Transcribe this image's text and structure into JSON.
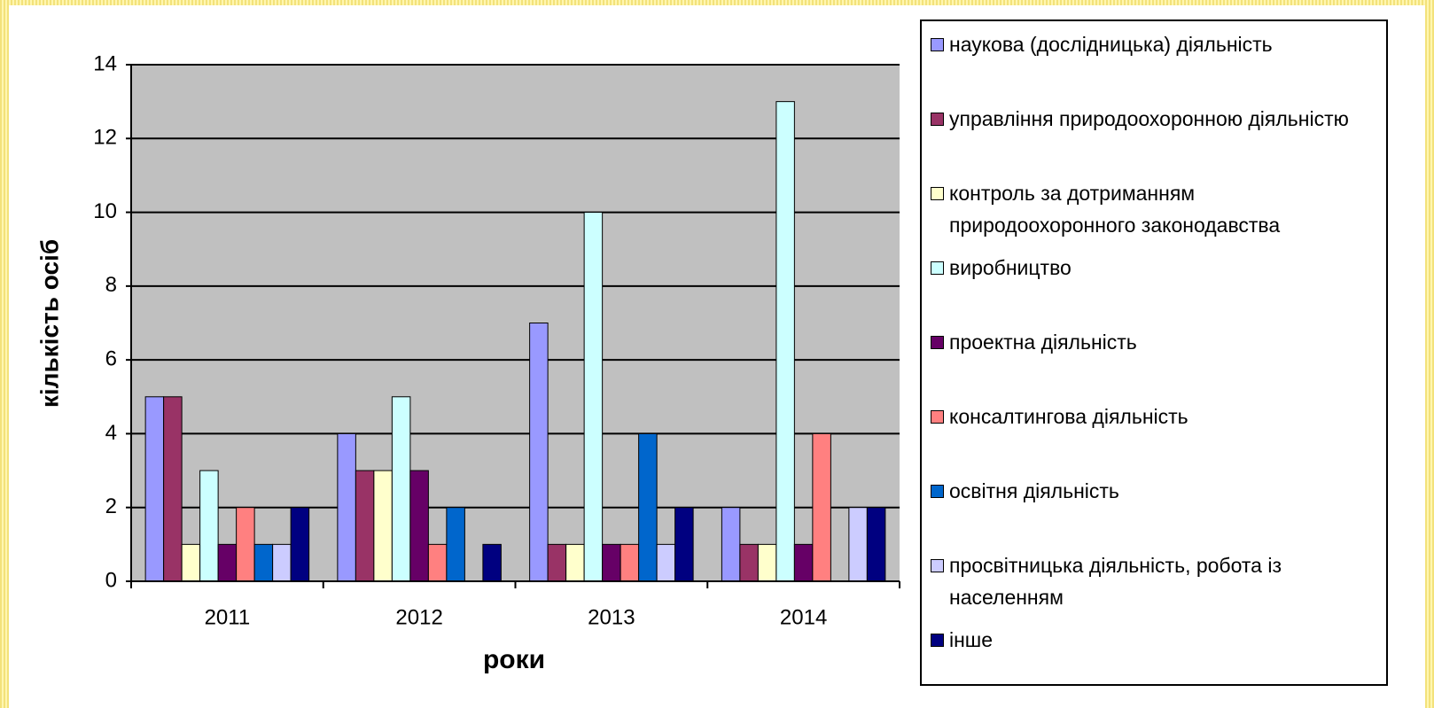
{
  "chart_data": {
    "type": "bar",
    "x_label": "роки",
    "y_label": "кількість осіб",
    "categories": [
      "2011",
      "2012",
      "2013",
      "2014"
    ],
    "series": [
      {
        "name": "наукова (дослідницька) діяльність",
        "color": "#9999ff",
        "values": [
          5,
          4,
          7,
          2
        ]
      },
      {
        "name": "управління природоохоронною діяльністю",
        "color": "#993366",
        "values": [
          5,
          3,
          1,
          1
        ]
      },
      {
        "name": "контроль за дотриманням природоохоронного законодавства",
        "color": "#ffffcc",
        "values": [
          1,
          3,
          1,
          1
        ]
      },
      {
        "name": "виробництво",
        "color": "#ccffff",
        "values": [
          3,
          5,
          10,
          13
        ]
      },
      {
        "name": "проектна діяльність",
        "color": "#660066",
        "values": [
          1,
          3,
          1,
          1
        ]
      },
      {
        "name": "консалтингова діяльність",
        "color": "#ff8080",
        "values": [
          2,
          1,
          1,
          4
        ]
      },
      {
        "name": "освітня діяльність",
        "color": "#0066cc",
        "values": [
          1,
          2,
          4,
          0
        ]
      },
      {
        "name": "просвітницька діяльність, робота із населенням",
        "color": "#ccccff",
        "values": [
          1,
          0,
          1,
          2
        ]
      },
      {
        "name": "інше",
        "color": "#000080",
        "values": [
          2,
          1,
          2,
          2
        ]
      }
    ],
    "ylim": [
      0,
      14
    ],
    "yticks": [
      0,
      2,
      4,
      6,
      8,
      10,
      12,
      14
    ],
    "grid": true,
    "legend": "right"
  }
}
